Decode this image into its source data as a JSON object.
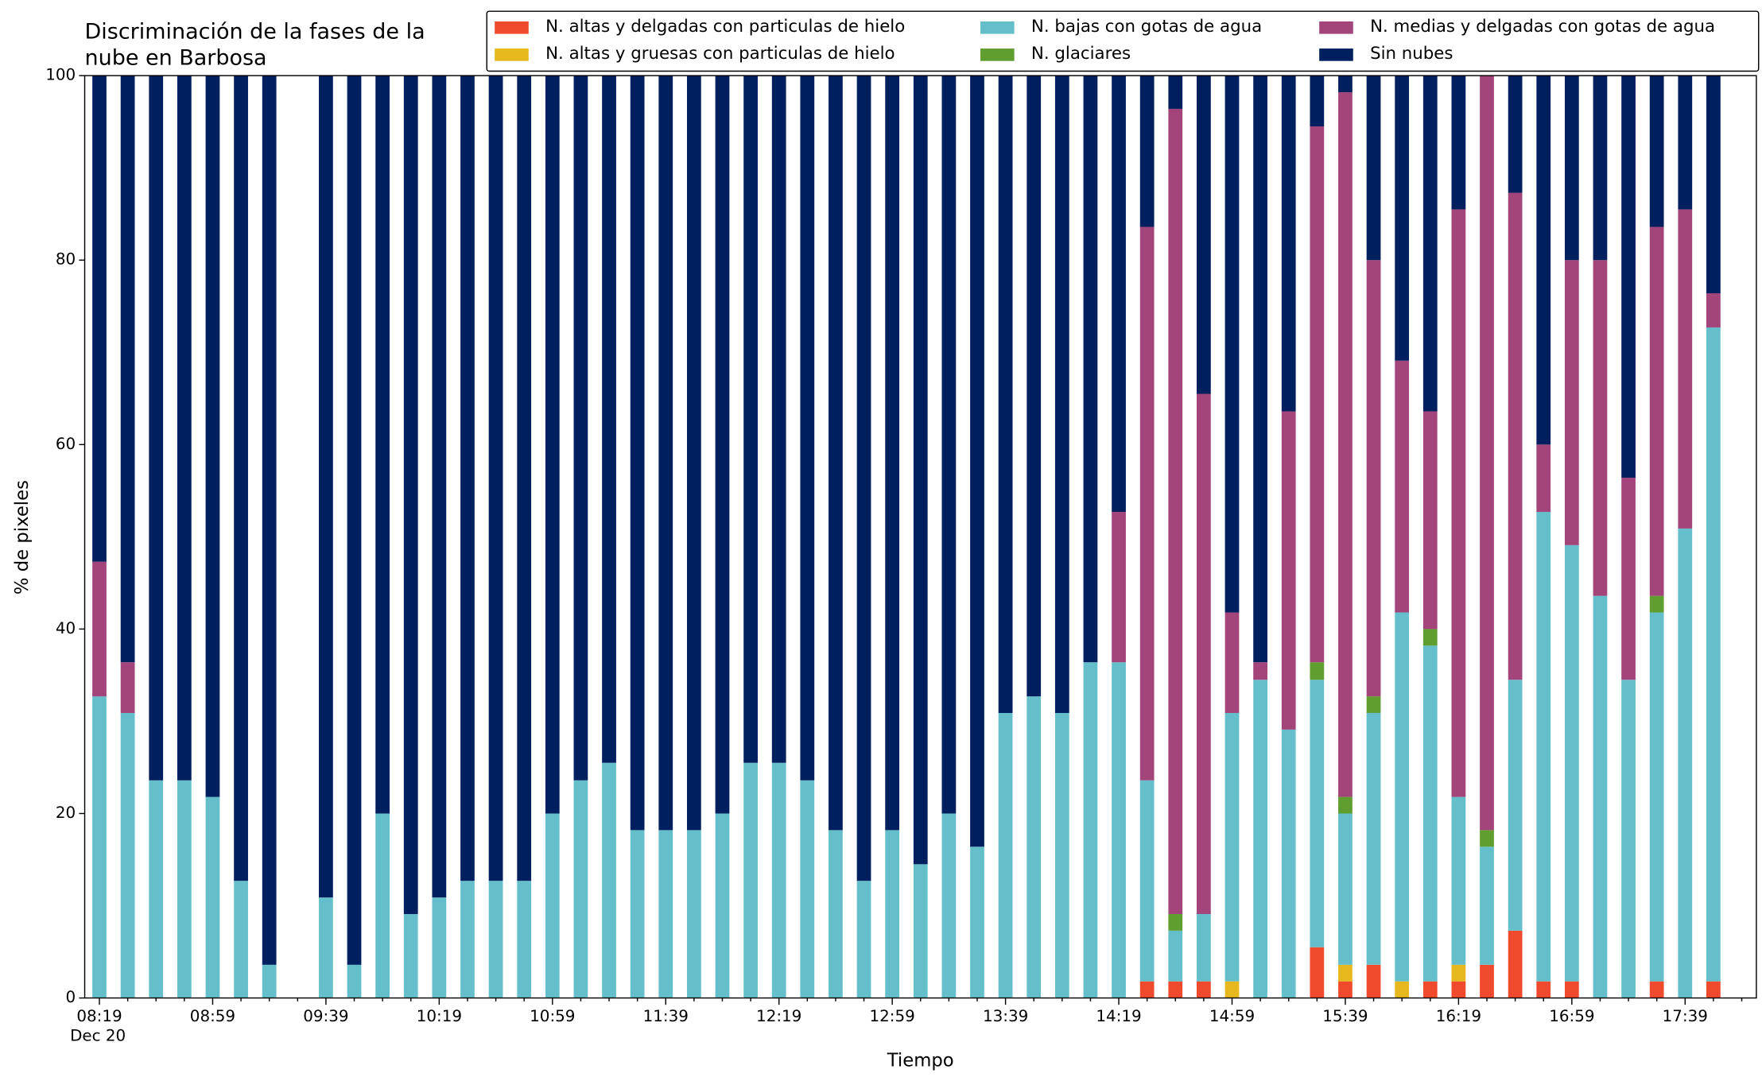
{
  "chart_data": {
    "type": "stacked_bar",
    "title": [
      "Discriminación de la fases de la",
      "nube en Barbosa"
    ],
    "x_label": "Tiempo",
    "y_label": "% de pixeles",
    "x_sublabel": "Dec 20",
    "categories": [
      "08:19",
      null,
      null,
      null,
      "08:59",
      null,
      null,
      null,
      "09:39",
      null,
      null,
      null,
      "10:19",
      null,
      null,
      null,
      "10:59",
      null,
      null,
      null,
      "11:39",
      null,
      null,
      null,
      "12:19",
      null,
      null,
      null,
      "12:59",
      null,
      null,
      null,
      "13:39",
      null,
      null,
      null,
      "14:19",
      null,
      null,
      null,
      "14:59",
      null,
      null,
      null,
      "15:39",
      null,
      null,
      null,
      "16:19",
      null,
      null,
      null,
      "16:59",
      null,
      null,
      null,
      "17:39",
      null
    ],
    "ylim": [
      0,
      100
    ],
    "yticks": [
      0,
      20,
      40,
      60,
      80,
      100
    ],
    "grid": false,
    "legend": "upper right",
    "legend_columns": 3,
    "series": [
      {
        "name": "N. altas y delgadas con particulas de hielo",
        "color": "#ef4a2d",
        "values": [
          0,
          0,
          0,
          0,
          0,
          0,
          0,
          null,
          0,
          0,
          0,
          0,
          0,
          0,
          0,
          0,
          0,
          0,
          0,
          0,
          0,
          0,
          0,
          0,
          0,
          0,
          0,
          0,
          0,
          0,
          0,
          0,
          0,
          0,
          0,
          0,
          0,
          1.8,
          1.8,
          1.8,
          0,
          0,
          0,
          5.5,
          1.8,
          3.6,
          0,
          1.8,
          1.8,
          3.6,
          7.3,
          1.8,
          1.8,
          0,
          0,
          1.8,
          0,
          1.8
        ]
      },
      {
        "name": "N. altas y gruesas con particulas de hielo",
        "color": "#e6b81e",
        "values": [
          0,
          0,
          0,
          0,
          0,
          0,
          0,
          null,
          0,
          0,
          0,
          0,
          0,
          0,
          0,
          0,
          0,
          0,
          0,
          0,
          0,
          0,
          0,
          0,
          0,
          0,
          0,
          0,
          0,
          0,
          0,
          0,
          0,
          0,
          0,
          0,
          0,
          0,
          0,
          0,
          1.8,
          0,
          0,
          0,
          1.8,
          0,
          1.8,
          0,
          1.8,
          0,
          0,
          0,
          0,
          0,
          0,
          0,
          0,
          0
        ]
      },
      {
        "name": "N. bajas con gotas de agua",
        "color": "#65bfca",
        "values": [
          32.7,
          30.9,
          23.6,
          23.6,
          21.8,
          12.7,
          3.6,
          null,
          10.9,
          3.6,
          20,
          9.1,
          10.9,
          12.7,
          12.7,
          12.7,
          20,
          23.6,
          25.5,
          18.2,
          18.2,
          18.2,
          20,
          25.5,
          25.5,
          23.6,
          18.2,
          12.7,
          18.2,
          14.5,
          20,
          16.4,
          30.9,
          32.7,
          30.9,
          36.4,
          36.4,
          21.8,
          5.5,
          7.3,
          29.1,
          34.5,
          29.1,
          29,
          16.4,
          27.3,
          40,
          36.4,
          18.2,
          12.8,
          27.2,
          50.9,
          47.3,
          43.6,
          34.5,
          40,
          50.9,
          70.9
        ]
      },
      {
        "name": "N. glaciares",
        "color": "#5f9e2f",
        "values": [
          0,
          0,
          0,
          0,
          0,
          0,
          0,
          null,
          0,
          0,
          0,
          0,
          0,
          0,
          0,
          0,
          0,
          0,
          0,
          0,
          0,
          0,
          0,
          0,
          0,
          0,
          0,
          0,
          0,
          0,
          0,
          0,
          0,
          0,
          0,
          0,
          0,
          0,
          1.8,
          0,
          0,
          0,
          0,
          1.9,
          1.8,
          1.8,
          0,
          1.8,
          0,
          1.8,
          0,
          0,
          0,
          0,
          0,
          1.8,
          0,
          0
        ]
      },
      {
        "name": "N. medias y delgadas con gotas de agua",
        "color": "#a3457a",
        "values": [
          14.6,
          5.5,
          0,
          0,
          0,
          0,
          0,
          null,
          0,
          0,
          0,
          0,
          0,
          0,
          0,
          0,
          0,
          0,
          0,
          0,
          0,
          0,
          0,
          0,
          0,
          0,
          0,
          0,
          0,
          0,
          0,
          0,
          0,
          0,
          0,
          0,
          16.3,
          60,
          87.3,
          56.4,
          10.9,
          1.9,
          34.5,
          58.1,
          76.4,
          47.3,
          27.3,
          23.6,
          63.7,
          81.8,
          52.8,
          7.3,
          30.9,
          36.4,
          21.9,
          40,
          34.6,
          3.7
        ]
      },
      {
        "name": "Sin nubes",
        "color": "#001f5f",
        "values": [
          52.7,
          63.6,
          76.4,
          76.4,
          78.2,
          87.3,
          96.4,
          null,
          89.1,
          96.4,
          80,
          90.9,
          89.1,
          87.3,
          87.3,
          87.3,
          80,
          76.4,
          74.5,
          81.8,
          81.8,
          81.8,
          80,
          74.5,
          74.5,
          76.4,
          81.8,
          87.3,
          81.8,
          85.5,
          80,
          83.6,
          69.1,
          67.3,
          69.1,
          63.6,
          47.3,
          16.4,
          3.6,
          34.5,
          58.2,
          63.6,
          36.4,
          5.5,
          1.8,
          20,
          30.9,
          36.4,
          14.5,
          0,
          12.7,
          40,
          20,
          20,
          43.6,
          16.4,
          14.5,
          23.6
        ]
      }
    ]
  }
}
